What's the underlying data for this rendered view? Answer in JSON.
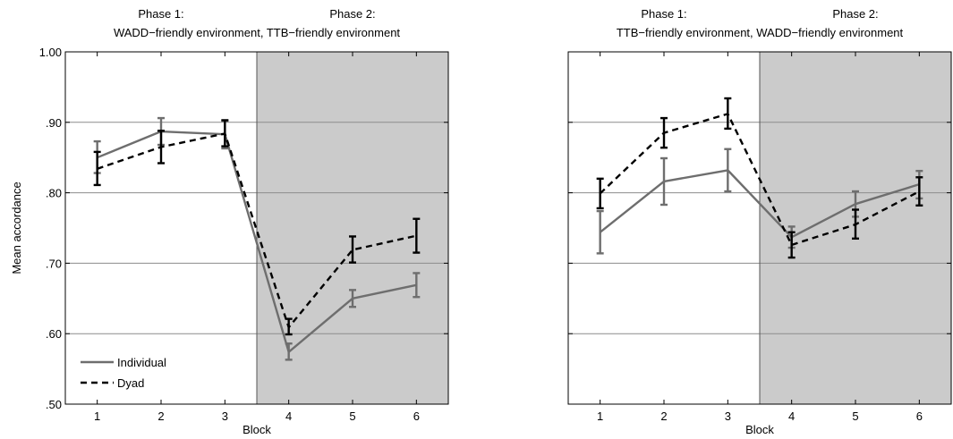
{
  "chart_data": [
    {
      "type": "line",
      "phase_titles": [
        {
          "line1": "Phase 1:",
          "line2": "WADD−friendly environment,"
        },
        {
          "line1": "Phase 2:",
          "line2": "TTB−friendly environment"
        }
      ],
      "xlabel": "Block",
      "ylabel": "Mean accordance",
      "x": [
        1,
        2,
        3,
        4,
        5,
        6
      ],
      "xtick_labels": [
        "1",
        "2",
        "3",
        "4",
        "5",
        "6"
      ],
      "xlim": [
        0.5,
        6.5
      ],
      "ylim": [
        0.5,
        1.0
      ],
      "yticks": [
        0.5,
        0.6,
        0.7,
        0.8,
        0.9,
        1.0
      ],
      "ytick_labels": [
        ".50",
        ".60",
        ".70",
        ".80",
        ".90",
        "1.00"
      ],
      "grid": "horizontal",
      "shaded_region": {
        "from": 3.5,
        "to": 6.5,
        "color": "#cbcbcb"
      },
      "legend_position": "bottom-left",
      "series": [
        {
          "name": "Individual",
          "style": "solid",
          "color": "#6e6e6e",
          "values": [
            0.85,
            0.887,
            0.883,
            0.574,
            0.65,
            0.669
          ],
          "err_low": [
            0.828,
            0.868,
            0.863,
            0.563,
            0.638,
            0.652
          ],
          "err_high": [
            0.873,
            0.906,
            0.902,
            0.586,
            0.662,
            0.686
          ]
        },
        {
          "name": "Dyad",
          "style": "dashed",
          "color": "#000000",
          "values": [
            0.834,
            0.865,
            0.884,
            0.609,
            0.719,
            0.739
          ],
          "err_low": [
            0.811,
            0.842,
            0.866,
            0.599,
            0.701,
            0.715
          ],
          "err_high": [
            0.858,
            0.888,
            0.903,
            0.621,
            0.738,
            0.763
          ]
        }
      ]
    },
    {
      "type": "line",
      "phase_titles": [
        {
          "line1": "Phase 1:",
          "line2": "TTB−friendly environment,"
        },
        {
          "line1": "Phase 2:",
          "line2": "WADD−friendly environment"
        }
      ],
      "xlabel": "Block",
      "ylabel": "",
      "x": [
        1,
        2,
        3,
        4,
        5,
        6
      ],
      "xtick_labels": [
        "1",
        "2",
        "3",
        "4",
        "5",
        "6"
      ],
      "xlim": [
        0.5,
        6.5
      ],
      "ylim": [
        0.5,
        1.0
      ],
      "yticks": [
        0.5,
        0.6,
        0.7,
        0.8,
        0.9,
        1.0
      ],
      "ytick_labels": [],
      "grid": "horizontal",
      "shaded_region": {
        "from": 3.5,
        "to": 6.5,
        "color": "#cbcbcb"
      },
      "series": [
        {
          "name": "Individual",
          "style": "solid",
          "color": "#6e6e6e",
          "values": [
            0.744,
            0.816,
            0.832,
            0.737,
            0.784,
            0.812
          ],
          "err_low": [
            0.714,
            0.783,
            0.802,
            0.722,
            0.766,
            0.792
          ],
          "err_high": [
            0.774,
            0.849,
            0.862,
            0.752,
            0.802,
            0.831
          ]
        },
        {
          "name": "Dyad",
          "style": "dashed",
          "color": "#000000",
          "values": [
            0.799,
            0.885,
            0.912,
            0.726,
            0.755,
            0.802
          ],
          "err_low": [
            0.778,
            0.864,
            0.891,
            0.708,
            0.735,
            0.782
          ],
          "err_high": [
            0.82,
            0.906,
            0.934,
            0.744,
            0.776,
            0.822
          ]
        }
      ]
    }
  ]
}
